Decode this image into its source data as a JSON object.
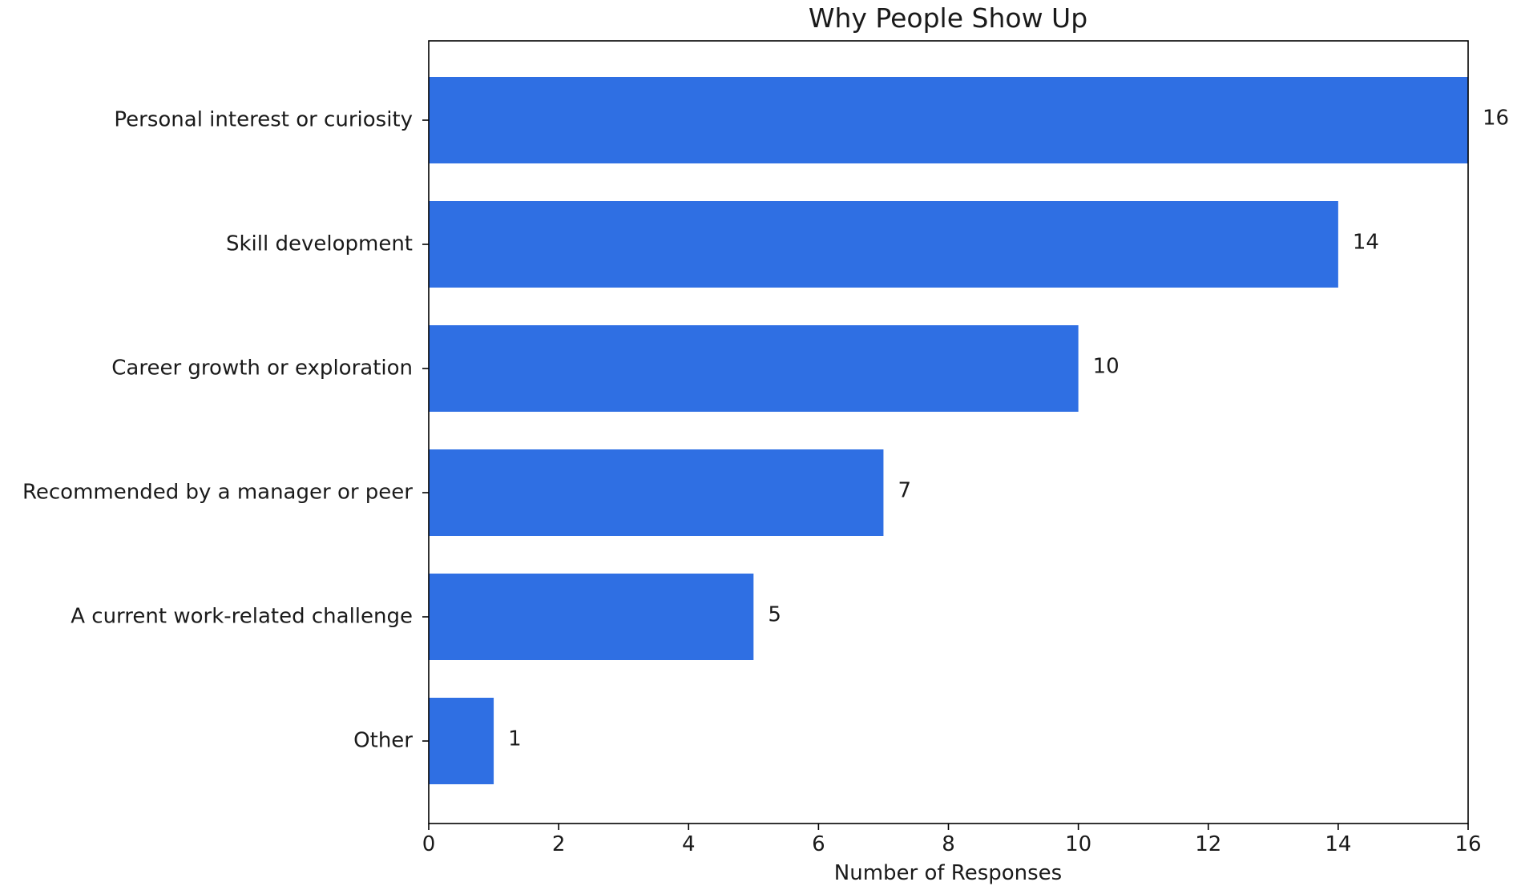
{
  "chart_data": {
    "type": "bar",
    "orientation": "horizontal",
    "title": "Why People Show Up",
    "xlabel": "Number of Responses",
    "ylabel": "",
    "categories": [
      "Personal interest or curiosity",
      "Skill development",
      "Career growth or exploration",
      "Recommended by a manager or peer",
      "A current work-related challenge",
      "Other"
    ],
    "values": [
      16,
      14,
      10,
      7,
      5,
      1
    ],
    "data_labels": [
      "16",
      "14",
      "10",
      "7",
      "5",
      "1"
    ],
    "xlim": [
      0,
      16
    ],
    "xticks": [
      0,
      2,
      4,
      6,
      8,
      10,
      12,
      14,
      16
    ],
    "grid": false,
    "legend": "none",
    "bar_color": "#2f6fe3"
  }
}
